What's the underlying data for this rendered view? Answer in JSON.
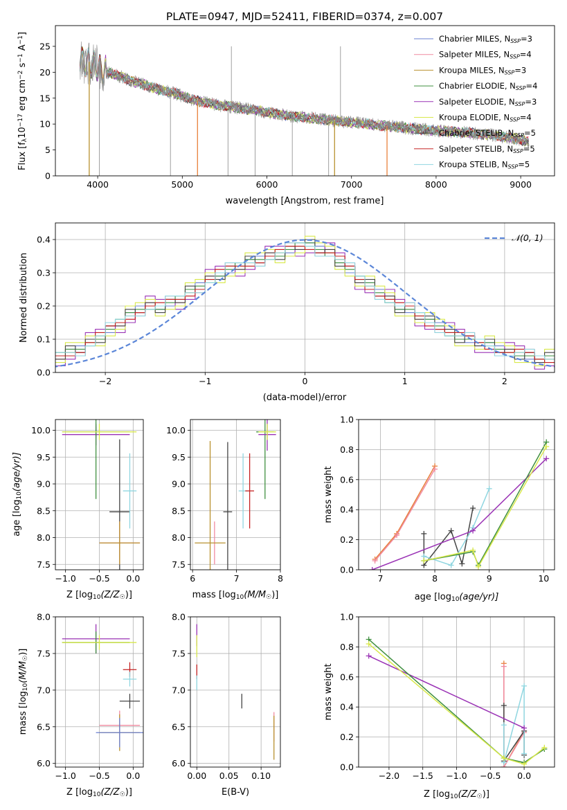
{
  "figure_title": "PLATE=0947, MJD=52411, FIBERID=0374, z=0.007",
  "colors": {
    "Chabrier MILES": "#6a7fd0",
    "Salpeter MILES": "#f08aa0",
    "Kroupa MILES": "#b8912e",
    "Chabrier ELODIE": "#3f8f3f",
    "Salpeter ELODIE": "#9a32b5",
    "Kroupa ELODIE": "#d8e84a",
    "Chabrier STELIB": "#444444",
    "Salpeter STELIB": "#c42020",
    "Kroupa STELIB": "#8fd6e0",
    "data": "#888888",
    "orange": "#e8803a",
    "normal": "#5b86d8"
  },
  "chart_data": [
    {
      "type": "line",
      "title": "PLATE=0947, MJD=52411, FIBERID=0374, z=0.007",
      "xlabel": "wavelength [Angstrom, rest frame]",
      "ylabel": "Flux [f_λ 10^-17 erg cm^-2 s^-1 A^-1]",
      "ylabel_parts": {
        "a": "Flux [f",
        "b": "λ",
        "c": "10",
        "d": "−17",
        "e": " erg cm",
        "f": "−2",
        "g": " s",
        "h": "−1",
        "i": " A",
        "j": "−1",
        "k": "]"
      },
      "xlim": [
        3500,
        9400
      ],
      "ylim": [
        0,
        29
      ],
      "xticks": [
        4000,
        5000,
        6000,
        7000,
        8000,
        9000
      ],
      "yticks": [
        0,
        5,
        10,
        15,
        20,
        25
      ],
      "legend_position": "upper right",
      "series": [
        {
          "name": "Chabrier MILES",
          "label_base": "Chabrier MILES, N",
          "nssp": "=3"
        },
        {
          "name": "Salpeter MILES",
          "label_base": "Salpeter MILES, N",
          "nssp": "=4"
        },
        {
          "name": "Kroupa MILES",
          "label_base": "Kroupa MILES, N",
          "nssp": "=3"
        },
        {
          "name": "Chabrier ELODIE",
          "label_base": "Chabrier ELODIE, N",
          "nssp": "=4"
        },
        {
          "name": "Salpeter ELODIE",
          "label_base": "Salpeter ELODIE, N",
          "nssp": "=3"
        },
        {
          "name": "Kroupa ELODIE",
          "label_base": "Kroupa ELODIE, N",
          "nssp": "=4"
        },
        {
          "name": "Chabrier STELIB",
          "label_base": "Chabrier STELIB, N",
          "nssp": "=5"
        },
        {
          "name": "Salpeter STELIB",
          "label_base": "Salpeter STELIB, N",
          "nssp": "=5"
        },
        {
          "name": "Kroupa STELIB",
          "label_base": "Kroupa STELIB, N",
          "nssp": "=5"
        }
      ],
      "nssp_sub": "SSP",
      "continuum": {
        "wavelength": [
          3790,
          3900,
          4000,
          4100,
          4300,
          4500,
          4700,
          4900,
          5100,
          5300,
          5500,
          5800,
          6000,
          6300,
          6600,
          6900,
          7200,
          7500,
          7800,
          8100,
          8400,
          8700,
          9000,
          9100
        ],
        "flux": [
          22.5,
          22.0,
          21.0,
          20.0,
          19.0,
          17.8,
          16.8,
          16.0,
          14.8,
          14.0,
          13.5,
          12.8,
          12.3,
          11.5,
          11.0,
          10.5,
          10.0,
          9.5,
          9.0,
          8.6,
          8.3,
          7.8,
          7.0,
          6.5
        ]
      },
      "model_dropouts": [
        {
          "series": "Kroupa MILES",
          "wavelength": 3900
        },
        {
          "series": "Salpeter STELIB",
          "wavelength": 5180
        },
        {
          "series": "Kroupa MILES",
          "wavelength": 6800
        },
        {
          "series": "Salpeter STELIB",
          "wavelength": 7420
        }
      ],
      "data_spikes": [
        {
          "wavelength": 4020,
          "flux": 0
        },
        {
          "wavelength": 4860,
          "flux": 0
        },
        {
          "wavelength": 5540,
          "flux": 0
        },
        {
          "wavelength": 5860,
          "flux": 0
        },
        {
          "wavelength": 6300,
          "flux": 0
        },
        {
          "wavelength": 6730,
          "flux": 0
        },
        {
          "wavelength": 6870,
          "flux": 25
        },
        {
          "wavelength": 5580,
          "flux": 25
        }
      ]
    },
    {
      "type": "histogram",
      "xlabel": "(data-model)/error",
      "ylabel": "Normed distribution",
      "xlim": [
        -2.5,
        2.5
      ],
      "ylim": [
        0,
        0.45
      ],
      "xticks": [
        -2,
        -1,
        0,
        1,
        2
      ],
      "yticks": [
        0.0,
        0.1,
        0.2,
        0.3,
        0.4
      ],
      "grid": true,
      "legend_position": "upper right",
      "reference_curve": {
        "name": "𝒩(0, 1)",
        "mean": 0,
        "sigma": 1
      },
      "bin_width": 0.1,
      "bin_start": -2.5,
      "base_profile": [
        0.05,
        0.06,
        0.07,
        0.09,
        0.11,
        0.13,
        0.15,
        0.17,
        0.19,
        0.2,
        0.2,
        0.21,
        0.22,
        0.24,
        0.26,
        0.28,
        0.3,
        0.31,
        0.32,
        0.33,
        0.34,
        0.35,
        0.36,
        0.37,
        0.38,
        0.38,
        0.37,
        0.36,
        0.34,
        0.31,
        0.28,
        0.26,
        0.24,
        0.22,
        0.2,
        0.19,
        0.17,
        0.15,
        0.14,
        0.12,
        0.11,
        0.1,
        0.09,
        0.08,
        0.07,
        0.06,
        0.06,
        0.05,
        0.04,
        0.04
      ],
      "series_offsets": {
        "Chabrier MILES": [
          0,
          0.01,
          -0.01
        ],
        "Salpeter MILES": [
          0.01,
          -0.01,
          0.02
        ],
        "Kroupa MILES": [
          0,
          0,
          0.01
        ],
        "Chabrier ELODIE": [
          -0.01,
          0.01,
          0
        ],
        "Salpeter ELODIE": [
          0.03,
          -0.02,
          0.01
        ],
        "Kroupa ELODIE": [
          0.02,
          0.03,
          -0.02
        ],
        "Chabrier STELIB": [
          0.01,
          0.02,
          0.01
        ],
        "Salpeter STELIB": [
          0,
          -0.01,
          0.01
        ],
        "Kroupa STELIB": [
          -0.01,
          0,
          0.02
        ]
      }
    },
    {
      "type": "errorbar",
      "xlabel": "Z [log₁₀(Z/Z☉)]",
      "xlabel_parts": {
        "a": "Z [log",
        "b": "10",
        "c": "(Z/Z",
        "d": "☉",
        "e": ")]"
      },
      "ylabel": "age [log₁₀(age/yr)]",
      "ylabel_parts": {
        "a": "age  [log",
        "b": "10",
        "c": "(age/yr)]"
      },
      "xlim": [
        -1.15,
        0.15
      ],
      "ylim": [
        7.4,
        10.2
      ],
      "xticks": [
        -1.0,
        -0.5,
        0.0
      ],
      "yticks": [
        7.5,
        8.0,
        8.5,
        9.0,
        9.5,
        10.0
      ],
      "grid": true,
      "points": [
        {
          "series": "Chabrier MILES",
          "x": -0.55,
          "y": 9.97,
          "xerr": 0.5,
          "yerr": 0.1
        },
        {
          "series": "Salpeter ELODIE",
          "x": -0.55,
          "y": 9.92,
          "xerr": 0.5,
          "yerr": 0.2
        },
        {
          "series": "Chabrier ELODIE",
          "x": -0.55,
          "y": 9.97,
          "xerr": 0.0,
          "yerr": 1.25
        },
        {
          "series": "Kroupa ELODIE",
          "x": -0.5,
          "y": 9.97,
          "xerr": 0.55,
          "yerr": 0.15
        },
        {
          "series": "Chabrier STELIB",
          "x": -0.2,
          "y": 8.48,
          "xerr": 0.15,
          "yerr": 1.35
        },
        {
          "series": "Kroupa STELIB",
          "x": -0.05,
          "y": 8.87,
          "xerr": 0.1,
          "yerr": 0.7
        },
        {
          "series": "Salpeter MILES",
          "x": -0.2,
          "y": 7.9,
          "xerr": 0.3,
          "yerr": 0.4
        },
        {
          "series": "Kroupa MILES",
          "x": -0.2,
          "y": 7.9,
          "xerr": 0.3,
          "yerr": 0.4
        }
      ]
    },
    {
      "type": "errorbar",
      "xlabel": "mass [log₁₀(M/M☉)]",
      "xlabel_parts": {
        "a": "mass [log",
        "b": "10",
        "c": "(M/M",
        "d": "☉",
        "e": ")]"
      },
      "xlim": [
        5.95,
        8.0
      ],
      "ylim": [
        7.4,
        10.2
      ],
      "xticks": [
        6,
        7,
        8
      ],
      "yticks": [
        7.5,
        8.0,
        8.5,
        9.0,
        9.5,
        10.0
      ],
      "grid": true,
      "points": [
        {
          "series": "Salpeter MILES",
          "x": 6.5,
          "y": 7.9,
          "xerr": 0.0,
          "yerr": 0.4
        },
        {
          "series": "Kroupa MILES",
          "x": 6.4,
          "y": 7.9,
          "xerr": 0.35,
          "yerr": 1.9
        },
        {
          "series": "Chabrier STELIB",
          "x": 6.8,
          "y": 8.48,
          "xerr": 0.1,
          "yerr": 1.3
        },
        {
          "series": "Kroupa STELIB",
          "x": 7.15,
          "y": 8.87,
          "xerr": 0.1,
          "yerr": 0.7
        },
        {
          "series": "Salpeter STELIB",
          "x": 7.3,
          "y": 8.87,
          "xerr": 0.1,
          "yerr": 0.7
        },
        {
          "series": "Chabrier ELODIE",
          "x": 7.65,
          "y": 9.97,
          "xerr": 0.2,
          "yerr": 1.25
        },
        {
          "series": "Salpeter ELODIE",
          "x": 7.7,
          "y": 9.92,
          "xerr": 0.2,
          "yerr": 0.3
        },
        {
          "series": "Kroupa ELODIE",
          "x": 7.7,
          "y": 9.97,
          "xerr": 0.2,
          "yerr": 0.15
        }
      ]
    },
    {
      "type": "line",
      "xlabel": "age [log₁₀(age/yr)]",
      "xlabel_parts": {
        "a": "age  [log",
        "b": "10",
        "c": "(age/yr)]"
      },
      "ylabel": "mass weight",
      "xlim": [
        6.6,
        10.2
      ],
      "ylim": [
        0,
        1
      ],
      "xticks": [
        7,
        8,
        9,
        10
      ],
      "yticks": [
        0.0,
        0.2,
        0.4,
        0.6,
        0.8,
        1.0
      ],
      "grid": true,
      "series": [
        {
          "name": "Kroupa MILES",
          "x": [
            6.9,
            7.3,
            8.0
          ],
          "y": [
            0.07,
            0.24,
            0.69
          ]
        },
        {
          "name": "Salpeter MILES",
          "x": [
            6.9,
            7.3,
            8.0
          ],
          "y": [
            0.06,
            0.23,
            0.67
          ]
        },
        {
          "name": "Chabrier STELIB",
          "x": [
            7.8,
            7.8,
            8.3,
            8.5,
            8.7
          ],
          "y": [
            0.24,
            0.03,
            0.26,
            0.04,
            0.41
          ]
        },
        {
          "name": "Kroupa STELIB",
          "x": [
            7.8,
            8.3,
            8.7,
            9.0
          ],
          "y": [
            0.09,
            0.03,
            0.28,
            0.54
          ]
        },
        {
          "name": "Salpeter ELODIE",
          "x": [
            6.85,
            8.7,
            10.05
          ],
          "y": [
            0.0,
            0.26,
            0.74
          ]
        },
        {
          "name": "Chabrier ELODIE",
          "x": [
            7.8,
            8.7,
            8.8,
            10.05
          ],
          "y": [
            0.06,
            0.12,
            0.03,
            0.85
          ]
        },
        {
          "name": "Kroupa ELODIE",
          "x": [
            7.8,
            8.7,
            8.8,
            10.05
          ],
          "y": [
            0.06,
            0.13,
            0.02,
            0.82
          ]
        }
      ]
    },
    {
      "type": "errorbar",
      "xlabel": "Z [log₁₀(Z/Z☉)]",
      "xlabel_parts": {
        "a": "Z [log",
        "b": "10",
        "c": "(Z/Z",
        "d": "☉",
        "e": ")]"
      },
      "ylabel": "mass [log₁₀(M/M☉)]",
      "ylabel_parts": {
        "a": "mass [log",
        "b": "10",
        "c": "(M/M",
        "d": "☉",
        "e": ")]"
      },
      "xlim": [
        -1.15,
        0.15
      ],
      "ylim": [
        5.95,
        8.0
      ],
      "xticks": [
        -1.0,
        -0.5,
        0.0
      ],
      "yticks": [
        6.0,
        6.5,
        7.0,
        7.5,
        8.0
      ],
      "grid": true,
      "points": [
        {
          "series": "Salpeter ELODIE",
          "x": -0.55,
          "y": 7.7,
          "xerr": 0.5,
          "yerr": 0.2
        },
        {
          "series": "Chabrier ELODIE",
          "x": -0.55,
          "y": 7.65,
          "xerr": 0.5,
          "yerr": 0.15
        },
        {
          "series": "Kroupa ELODIE",
          "x": -0.5,
          "y": 7.65,
          "xerr": 0.55,
          "yerr": 0.1
        },
        {
          "series": "Salpeter STELIB",
          "x": -0.05,
          "y": 7.28,
          "xerr": 0.1,
          "yerr": 0.1
        },
        {
          "series": "Kroupa STELIB",
          "x": -0.05,
          "y": 7.15,
          "xerr": 0.1,
          "yerr": 0.1
        },
        {
          "series": "Chabrier STELIB",
          "x": -0.05,
          "y": 6.85,
          "xerr": 0.15,
          "yerr": 0.1
        },
        {
          "series": "Salpeter MILES",
          "x": -0.2,
          "y": 6.52,
          "xerr": 0.3,
          "yerr": 0.2
        },
        {
          "series": "Kroupa MILES",
          "x": -0.2,
          "y": 6.42,
          "xerr": 0.3,
          "yerr": 0.25
        },
        {
          "series": "Chabrier MILES",
          "x": -0.2,
          "y": 6.42,
          "xerr": 0.35,
          "yerr": 0.2
        }
      ]
    },
    {
      "type": "errorbar",
      "xlabel": "E(B-V)",
      "xlim": [
        -0.01,
        0.13
      ],
      "ylim": [
        5.95,
        8.0
      ],
      "xticks": [
        0.0,
        0.05,
        0.1
      ],
      "yticks": [
        6.0,
        6.5,
        7.0,
        7.5,
        8.0
      ],
      "grid": true,
      "points": [
        {
          "series": "Salpeter ELODIE",
          "x": 0.0,
          "y": 7.75,
          "xerr": 0.0,
          "yerr": 0.15
        },
        {
          "series": "Kroupa ELODIE",
          "x": 0.0,
          "y": 7.6,
          "xerr": 0.0,
          "yerr": 0.15
        },
        {
          "series": "Salpeter STELIB",
          "x": 0.0,
          "y": 7.25,
          "xerr": 0.0,
          "yerr": 0.1
        },
        {
          "series": "Kroupa STELIB",
          "x": 0.0,
          "y": 7.1,
          "xerr": 0.0,
          "yerr": 0.1
        },
        {
          "series": "Chabrier STELIB",
          "x": 0.07,
          "y": 6.85,
          "xerr": 0.0,
          "yerr": 0.1
        },
        {
          "series": "Salpeter MILES",
          "x": 0.12,
          "y": 6.5,
          "xerr": 0.0,
          "yerr": 0.2
        },
        {
          "series": "Kroupa MILES",
          "x": 0.12,
          "y": 6.35,
          "xerr": 0.0,
          "yerr": 0.3
        }
      ]
    },
    {
      "type": "line",
      "xlabel": "Z [log₁₀(Z/Z☉)]",
      "xlabel_parts": {
        "a": "Z [log",
        "b": "10",
        "c": "(Z/Z",
        "d": "☉",
        "e": ")]"
      },
      "ylabel": "mass weight",
      "xlim": [
        -2.45,
        0.45
      ],
      "ylim": [
        0,
        1
      ],
      "xticks": [
        -2.0,
        -1.5,
        -1.0,
        -0.5,
        0.0
      ],
      "yticks": [
        0.0,
        0.2,
        0.4,
        0.6,
        0.8,
        1.0
      ],
      "grid": true,
      "series": [
        {
          "name": "Kroupa MILES",
          "x": [
            -0.3,
            -0.3,
            0.0
          ],
          "y": [
            0.69,
            0.0,
            0.24
          ]
        },
        {
          "name": "Salpeter MILES",
          "x": [
            -0.3,
            -0.3,
            0.0
          ],
          "y": [
            0.67,
            0.0,
            0.23
          ]
        },
        {
          "name": "Chabrier STELIB",
          "x": [
            -0.3,
            -0.3,
            0.0,
            0.0
          ],
          "y": [
            0.41,
            0.04,
            0.24,
            0.08
          ]
        },
        {
          "name": "Kroupa STELIB",
          "x": [
            -0.3,
            -0.3,
            0.0,
            0.0
          ],
          "y": [
            0.28,
            0.03,
            0.54,
            0.09
          ]
        },
        {
          "name": "Salpeter ELODIE",
          "x": [
            -2.3,
            0.0
          ],
          "y": [
            0.74,
            0.26
          ]
        },
        {
          "name": "Chabrier ELODIE",
          "x": [
            -2.3,
            -0.3,
            0.0,
            0.3
          ],
          "y": [
            0.85,
            0.06,
            0.03,
            0.12
          ]
        },
        {
          "name": "Kroupa ELODIE",
          "x": [
            -2.3,
            -0.3,
            0.0,
            0.3
          ],
          "y": [
            0.82,
            0.06,
            0.02,
            0.13
          ]
        }
      ]
    }
  ]
}
